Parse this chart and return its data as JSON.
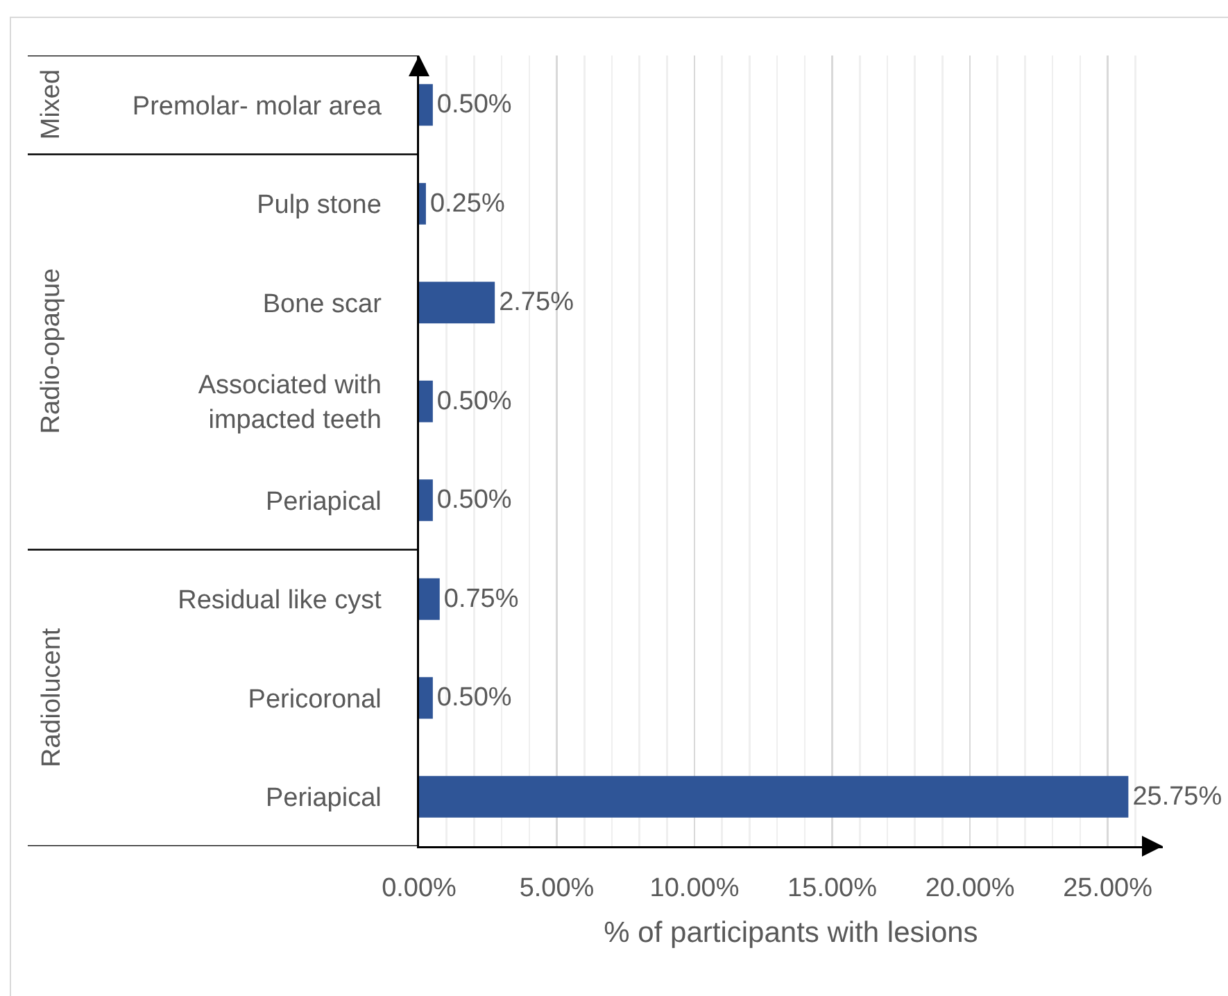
{
  "chart_data": {
    "type": "bar",
    "orientation": "horizontal",
    "xlabel": "% of participants with lesions",
    "categories": [
      "Premolar- molar area",
      "Pulp stone",
      "Bone scar",
      "Associated with impacted teeth",
      "Periapical",
      "Residual like cyst",
      "Pericoronal",
      "Periapical"
    ],
    "series": [
      {
        "color": "#2f5597",
        "values": [
          0.5,
          null,
          null,
          null,
          null,
          null,
          null,
          null
        ],
        "value_labels": [
          "0.50%",
          null,
          null,
          null,
          null,
          null,
          null,
          null
        ]
      },
      {
        "color": "#2f5597",
        "values": [
          null,
          0.25,
          2.75,
          0.5,
          0.5,
          null,
          null,
          null
        ],
        "value_labels": [
          null,
          "0.25%",
          "2.75%",
          "0.50%",
          "0.50%",
          null,
          null,
          null
        ]
      },
      {
        "color": "#2f5597",
        "values": [
          null,
          null,
          null,
          null,
          null,
          0.75,
          0.5,
          25.75
        ],
        "value_labels": [
          null,
          null,
          null,
          null,
          null,
          "0.75%",
          "0.50%",
          "25.75%"
        ]
      }
    ],
    "annotations": [
      "Mixed",
      "Radio-opaque",
      "Radiolucent"
    ],
    "xlim": [
      0,
      27
    ],
    "xticks": [
      {
        "value": 0,
        "label": "0.00%"
      },
      {
        "value": 1,
        "label": null
      },
      {
        "value": 2,
        "label": null
      },
      {
        "value": 3,
        "label": null
      },
      {
        "value": 4,
        "label": null
      },
      {
        "value": 5,
        "label": "5.00%"
      },
      {
        "value": 6,
        "label": null
      },
      {
        "value": 7,
        "label": null
      },
      {
        "value": 8,
        "label": null
      },
      {
        "value": 9,
        "label": null
      },
      {
        "value": 10,
        "label": "10.00%"
      },
      {
        "value": 11,
        "label": null
      },
      {
        "value": 12,
        "label": null
      },
      {
        "value": 13,
        "label": null
      },
      {
        "value": 14,
        "label": null
      },
      {
        "value": 15,
        "label": "15.00%"
      },
      {
        "value": 16,
        "label": null
      },
      {
        "value": 17,
        "label": null
      },
      {
        "value": 18,
        "label": null
      },
      {
        "value": 19,
        "label": null
      },
      {
        "value": 20,
        "label": "20.00%"
      },
      {
        "value": 21,
        "label": null
      },
      {
        "value": 22,
        "label": null
      },
      {
        "value": 23,
        "label": null
      },
      {
        "value": 24,
        "label": null
      },
      {
        "value": 25,
        "label": "25.00%"
      },
      {
        "value": 26,
        "label": null
      }
    ],
    "grid": "x"
  }
}
